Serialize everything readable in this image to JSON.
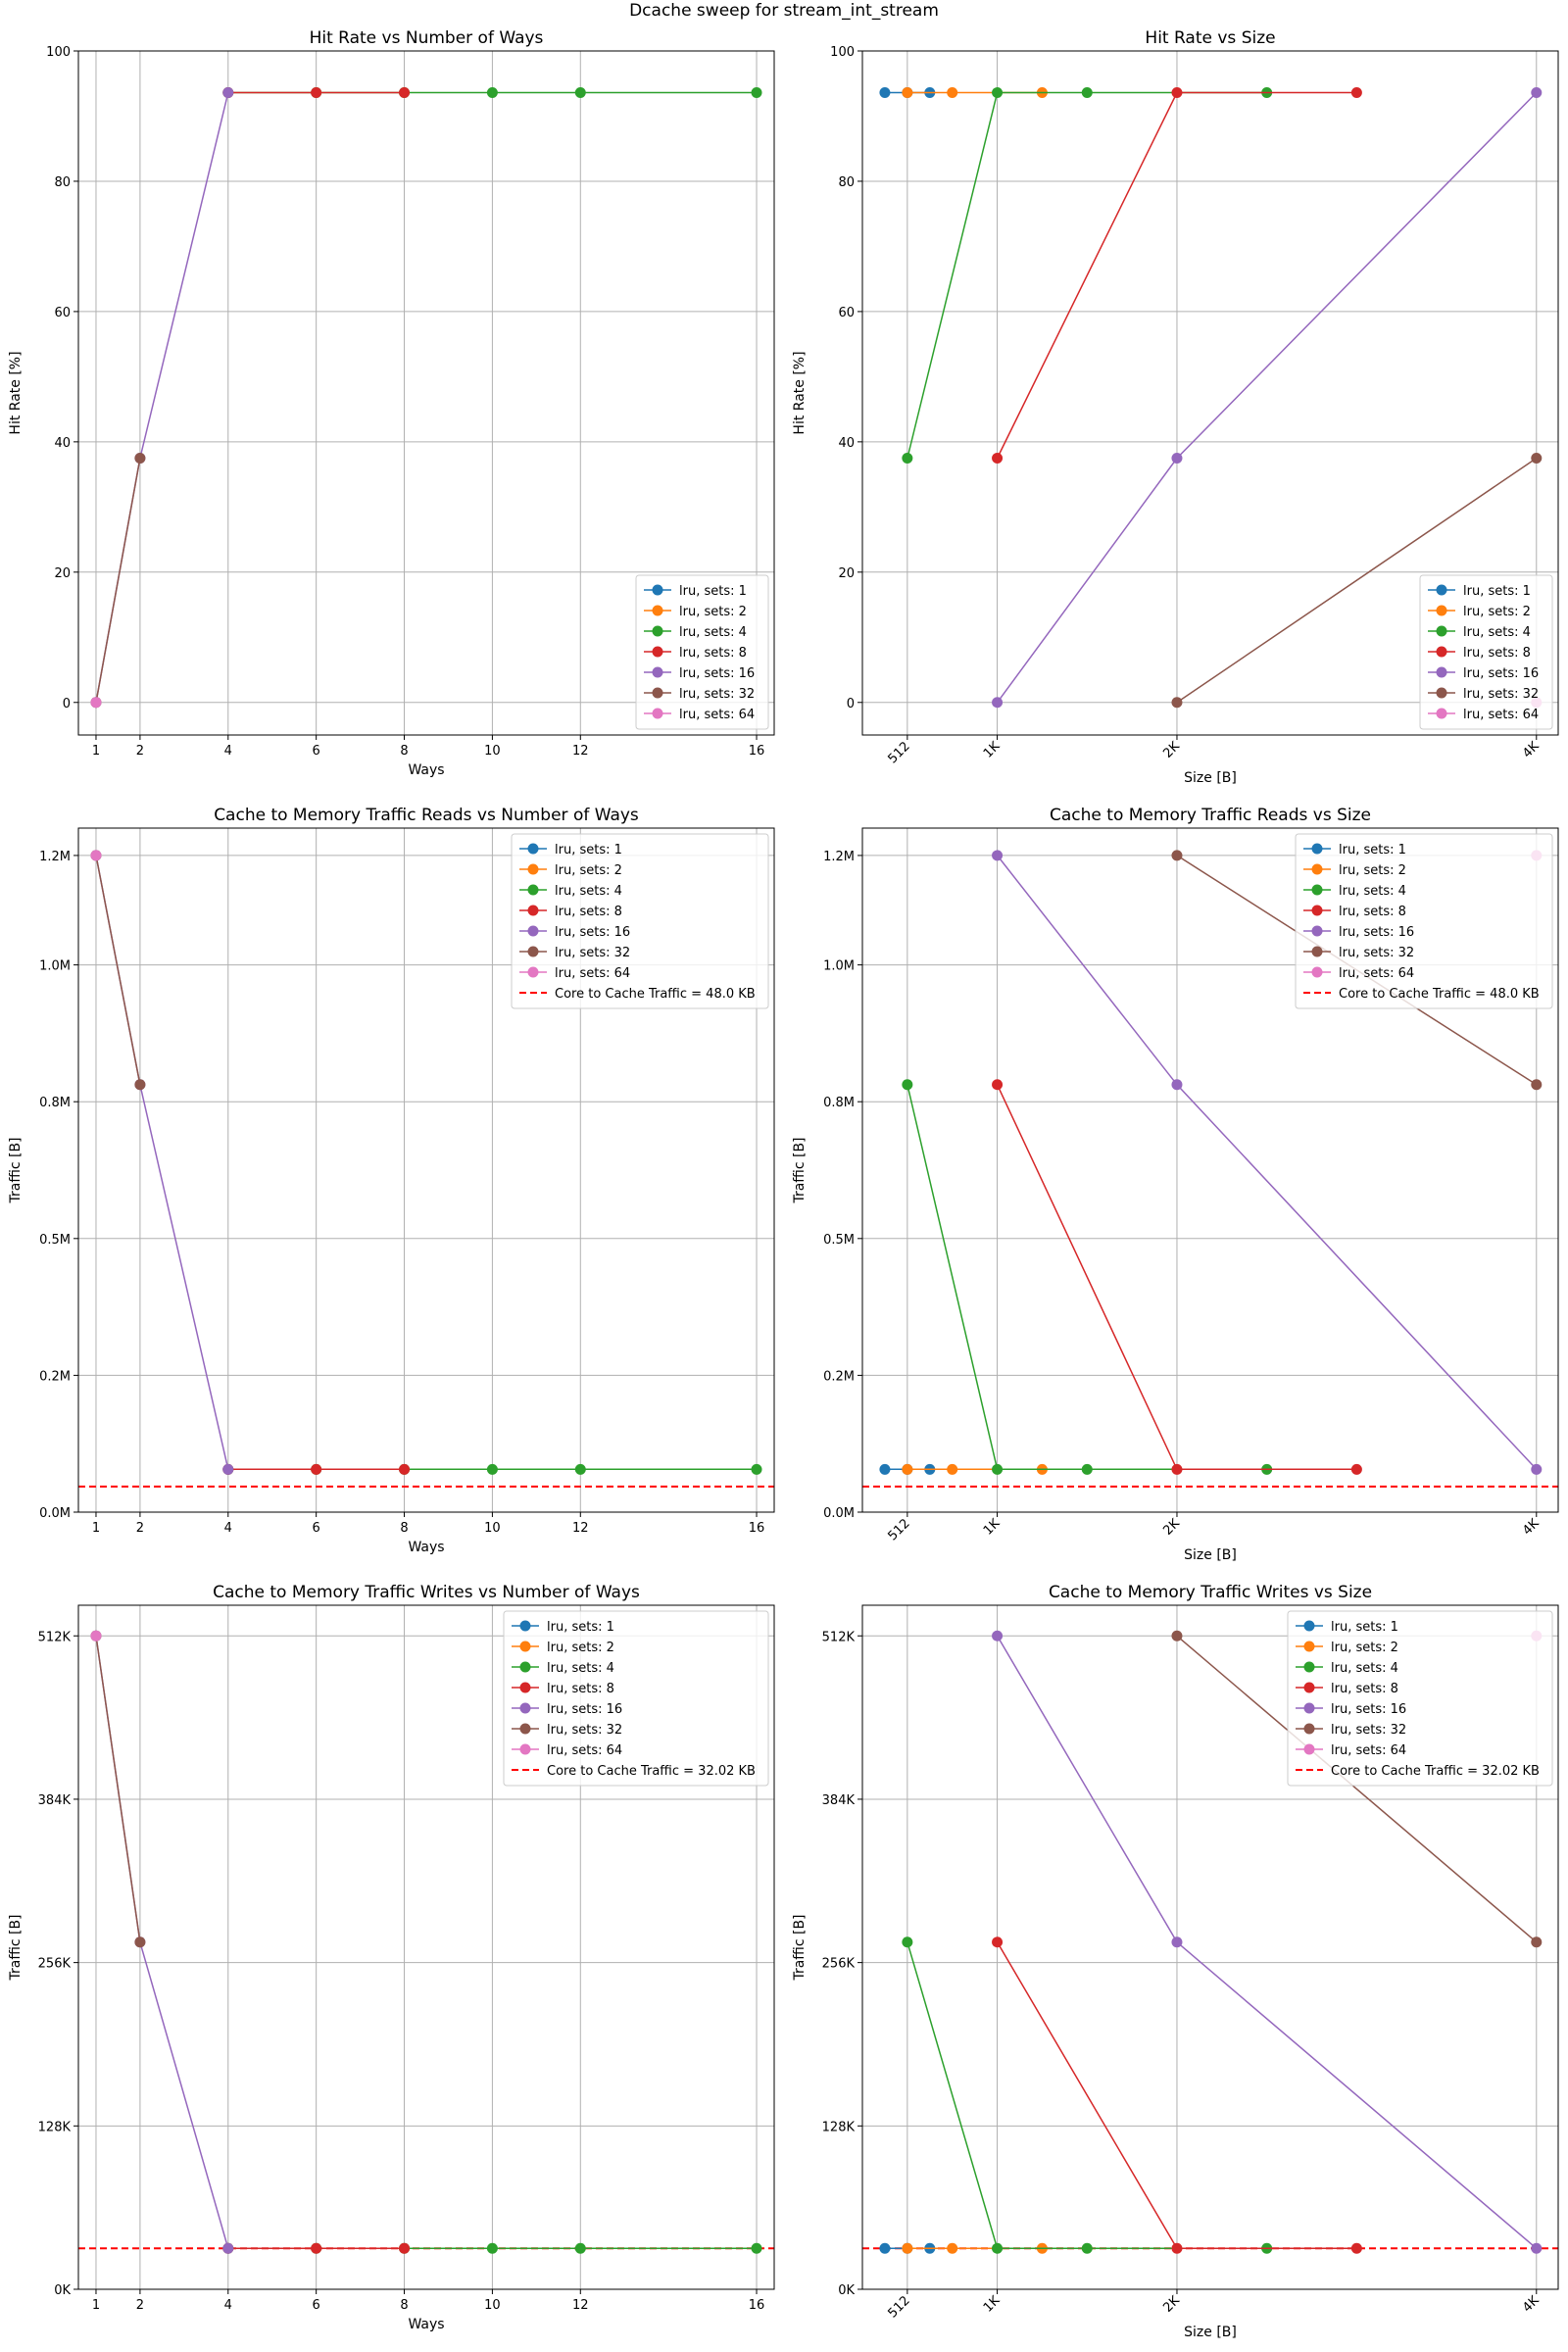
{
  "suptitle": "Dcache sweep for stream_int_stream",
  "colors": {
    "lru, sets: 1": "#1f77b4",
    "lru, sets: 2": "#ff7f0e",
    "lru, sets: 4": "#2ca02c",
    "lru, sets: 8": "#d62728",
    "lru, sets: 16": "#9467bd",
    "lru, sets: 32": "#8c564b",
    "lru, sets: 64": "#e377c2",
    "reference": "#ff0000",
    "grid": "#b0b0b0"
  },
  "chart_data": [
    {
      "type": "line",
      "title": "Hit Rate vs Number of Ways",
      "xlabel": "Ways",
      "ylabel": "Hit Rate [%]",
      "xlim": [
        0.6,
        16.4
      ],
      "ylim": [
        -5,
        100
      ],
      "xticks": [
        1,
        2,
        4,
        6,
        8,
        10,
        12,
        16
      ],
      "xticklabels": [
        "1",
        "2",
        "4",
        "6",
        "8",
        "10",
        "12",
        "16"
      ],
      "yticks": [
        0,
        20,
        40,
        60,
        80,
        100
      ],
      "yticklabels": [
        "0",
        "20",
        "40",
        "60",
        "80",
        "100"
      ],
      "xtick_rotation": 0,
      "grid": true,
      "legend_position": "lower right",
      "series": [
        {
          "name": "lru, sets: 1",
          "x": [],
          "y": []
        },
        {
          "name": "lru, sets: 2",
          "x": [],
          "y": []
        },
        {
          "name": "lru, sets: 4",
          "x": [
            4,
            6,
            8,
            10,
            12,
            16
          ],
          "y": [
            93.6,
            93.6,
            93.6,
            93.6,
            93.6,
            93.6
          ]
        },
        {
          "name": "lru, sets: 8",
          "x": [
            4,
            6,
            8
          ],
          "y": [
            93.6,
            93.6,
            93.6
          ]
        },
        {
          "name": "lru, sets: 16",
          "x": [
            1,
            2,
            4
          ],
          "y": [
            0,
            37.5,
            93.6
          ]
        },
        {
          "name": "lru, sets: 32",
          "x": [
            1,
            2
          ],
          "y": [
            0,
            37.5
          ]
        },
        {
          "name": "lru, sets: 64",
          "x": [
            1
          ],
          "y": [
            0
          ]
        }
      ],
      "reference_line": null
    },
    {
      "type": "line",
      "title": "Hit Rate vs Size",
      "xlabel": "Size [B]",
      "ylabel": "Hit Rate [%]",
      "xlim": [
        256,
        4220
      ],
      "ylim": [
        -5,
        100
      ],
      "xticks": [
        512,
        1024,
        2048,
        4096
      ],
      "xticklabels": [
        "512",
        "1K",
        "2K",
        "4K"
      ],
      "yticks": [
        0,
        20,
        40,
        60,
        80,
        100
      ],
      "yticklabels": [
        "0",
        "20",
        "40",
        "60",
        "80",
        "100"
      ],
      "xtick_rotation": -45,
      "grid": true,
      "legend_position": "lower right",
      "series": [
        {
          "name": "lru, sets: 1",
          "x": [
            384,
            512,
            640
          ],
          "y": [
            93.6,
            93.6,
            93.6
          ]
        },
        {
          "name": "lru, sets: 2",
          "x": [
            512,
            768,
            1280
          ],
          "y": [
            93.6,
            93.6,
            93.6
          ]
        },
        {
          "name": "lru, sets: 4",
          "x": [
            512,
            1024,
            1536,
            2560
          ],
          "y": [
            37.5,
            93.6,
            93.6,
            93.6
          ]
        },
        {
          "name": "lru, sets: 8",
          "x": [
            1024,
            2048,
            3072
          ],
          "y": [
            37.5,
            93.6,
            93.6
          ]
        },
        {
          "name": "lru, sets: 16",
          "x": [
            1024,
            2048,
            4096
          ],
          "y": [
            0,
            37.5,
            93.6
          ]
        },
        {
          "name": "lru, sets: 32",
          "x": [
            2048,
            4096
          ],
          "y": [
            0,
            37.5
          ]
        },
        {
          "name": "lru, sets: 64",
          "x": [
            4096
          ],
          "y": [
            0
          ]
        }
      ],
      "reference_line": null
    },
    {
      "type": "line",
      "title": "Cache to Memory Traffic Reads vs Number of Ways",
      "xlabel": "Ways",
      "ylabel": "Traffic [B]",
      "xlim": [
        0.6,
        16.4
      ],
      "ylim": [
        0,
        1310720
      ],
      "xticks": [
        1,
        2,
        4,
        6,
        8,
        10,
        12,
        16
      ],
      "xticklabels": [
        "1",
        "2",
        "4",
        "6",
        "8",
        "10",
        "12",
        "16"
      ],
      "yticks": [
        0,
        262144,
        524288,
        786432,
        1048576,
        1258291
      ],
      "yticklabels": [
        "0.0M",
        "0.2M",
        "0.5M",
        "0.8M",
        "1.0M",
        "1.2M"
      ],
      "xtick_rotation": 0,
      "grid": true,
      "legend_position": "upper right",
      "series": [
        {
          "name": "lru, sets: 1",
          "x": [],
          "y": []
        },
        {
          "name": "lru, sets: 2",
          "x": [],
          "y": []
        },
        {
          "name": "lru, sets: 4",
          "x": [
            4,
            6,
            8,
            10,
            12,
            16
          ],
          "y": [
            82000,
            82000,
            82000,
            82000,
            82000,
            82000
          ]
        },
        {
          "name": "lru, sets: 8",
          "x": [
            4,
            6,
            8
          ],
          "y": [
            82000,
            82000,
            82000
          ]
        },
        {
          "name": "lru, sets: 16",
          "x": [
            1,
            2,
            4
          ],
          "y": [
            1258291,
            819200,
            82000
          ]
        },
        {
          "name": "lru, sets: 32",
          "x": [
            1,
            2
          ],
          "y": [
            1258291,
            819200
          ]
        },
        {
          "name": "lru, sets: 64",
          "x": [
            1
          ],
          "y": [
            1258291
          ]
        }
      ],
      "reference_line": {
        "label": "Core to Cache Traffic = 48.0 KB",
        "y": 49152
      }
    },
    {
      "type": "line",
      "title": "Cache to Memory Traffic Reads vs Size",
      "xlabel": "Size [B]",
      "ylabel": "Traffic [B]",
      "xlim": [
        256,
        4220
      ],
      "ylim": [
        0,
        1310720
      ],
      "xticks": [
        512,
        1024,
        2048,
        4096
      ],
      "xticklabels": [
        "512",
        "1K",
        "2K",
        "4K"
      ],
      "yticks": [
        0,
        262144,
        524288,
        786432,
        1048576,
        1258291
      ],
      "yticklabels": [
        "0.0M",
        "0.2M",
        "0.5M",
        "0.8M",
        "1.0M",
        "1.2M"
      ],
      "xtick_rotation": -45,
      "grid": true,
      "legend_position": "upper right",
      "series": [
        {
          "name": "lru, sets: 1",
          "x": [
            384,
            512,
            640
          ],
          "y": [
            82000,
            82000,
            82000
          ]
        },
        {
          "name": "lru, sets: 2",
          "x": [
            512,
            768,
            1280
          ],
          "y": [
            82000,
            82000,
            82000
          ]
        },
        {
          "name": "lru, sets: 4",
          "x": [
            512,
            1024,
            1536,
            2560
          ],
          "y": [
            819200,
            82000,
            82000,
            82000
          ]
        },
        {
          "name": "lru, sets: 8",
          "x": [
            1024,
            2048,
            3072
          ],
          "y": [
            819200,
            82000,
            82000
          ]
        },
        {
          "name": "lru, sets: 16",
          "x": [
            1024,
            2048,
            4096
          ],
          "y": [
            1258291,
            819200,
            82000
          ]
        },
        {
          "name": "lru, sets: 32",
          "x": [
            2048,
            4096
          ],
          "y": [
            1258291,
            819200
          ]
        },
        {
          "name": "lru, sets: 64",
          "x": [
            4096
          ],
          "y": [
            1258291
          ]
        }
      ],
      "reference_line": {
        "label": "Core to Cache Traffic = 48.0 KB",
        "y": 49152
      }
    },
    {
      "type": "line",
      "title": "Cache to Memory Traffic Writes vs Number of Ways",
      "xlabel": "Ways",
      "ylabel": "Traffic [B]",
      "xlim": [
        0.6,
        16.4
      ],
      "ylim": [
        0,
        548864
      ],
      "xticks": [
        1,
        2,
        4,
        6,
        8,
        10,
        12,
        16
      ],
      "xticklabels": [
        "1",
        "2",
        "4",
        "6",
        "8",
        "10",
        "12",
        "16"
      ],
      "yticks": [
        0,
        131072,
        262144,
        393216,
        524288
      ],
      "yticklabels": [
        "0K",
        "128K",
        "256K",
        "384K",
        "512K"
      ],
      "xtick_rotation": 0,
      "grid": true,
      "legend_position": "upper right",
      "series": [
        {
          "name": "lru, sets: 1",
          "x": [],
          "y": []
        },
        {
          "name": "lru, sets: 2",
          "x": [],
          "y": []
        },
        {
          "name": "lru, sets: 4",
          "x": [
            4,
            6,
            8,
            10,
            12,
            16
          ],
          "y": [
            32800,
            32800,
            32800,
            32800,
            32800,
            32800
          ]
        },
        {
          "name": "lru, sets: 8",
          "x": [
            4,
            6,
            8
          ],
          "y": [
            32800,
            32800,
            32800
          ]
        },
        {
          "name": "lru, sets: 16",
          "x": [
            1,
            2,
            4
          ],
          "y": [
            524288,
            278528,
            32800
          ]
        },
        {
          "name": "lru, sets: 32",
          "x": [
            1,
            2
          ],
          "y": [
            524288,
            278528
          ]
        },
        {
          "name": "lru, sets: 64",
          "x": [
            1
          ],
          "y": [
            524288
          ]
        }
      ],
      "reference_line": {
        "label": "Core to Cache Traffic = 32.02 KB",
        "y": 32788
      }
    },
    {
      "type": "line",
      "title": "Cache to Memory Traffic Writes vs Size",
      "xlabel": "Size [B]",
      "ylabel": "Traffic [B]",
      "xlim": [
        256,
        4220
      ],
      "ylim": [
        0,
        548864
      ],
      "xticks": [
        512,
        1024,
        2048,
        4096
      ],
      "xticklabels": [
        "512",
        "1K",
        "2K",
        "4K"
      ],
      "yticks": [
        0,
        131072,
        262144,
        393216,
        524288
      ],
      "yticklabels": [
        "0K",
        "128K",
        "256K",
        "384K",
        "512K"
      ],
      "xtick_rotation": -45,
      "grid": true,
      "legend_position": "upper right",
      "series": [
        {
          "name": "lru, sets: 1",
          "x": [
            384,
            512,
            640
          ],
          "y": [
            32800,
            32800,
            32800
          ]
        },
        {
          "name": "lru, sets: 2",
          "x": [
            512,
            768,
            1280
          ],
          "y": [
            32800,
            32800,
            32800
          ]
        },
        {
          "name": "lru, sets: 4",
          "x": [
            512,
            1024,
            1536,
            2560
          ],
          "y": [
            278528,
            32800,
            32800,
            32800
          ]
        },
        {
          "name": "lru, sets: 8",
          "x": [
            1024,
            2048,
            3072
          ],
          "y": [
            278528,
            32800,
            32800
          ]
        },
        {
          "name": "lru, sets: 16",
          "x": [
            1024,
            2048,
            4096
          ],
          "y": [
            524288,
            278528,
            32800
          ]
        },
        {
          "name": "lru, sets: 32",
          "x": [
            2048,
            4096
          ],
          "y": [
            524288,
            278528
          ]
        },
        {
          "name": "lru, sets: 64",
          "x": [
            4096
          ],
          "y": [
            524288
          ]
        }
      ],
      "reference_line": {
        "label": "Core to Cache Traffic = 32.02 KB",
        "y": 32788
      }
    }
  ]
}
